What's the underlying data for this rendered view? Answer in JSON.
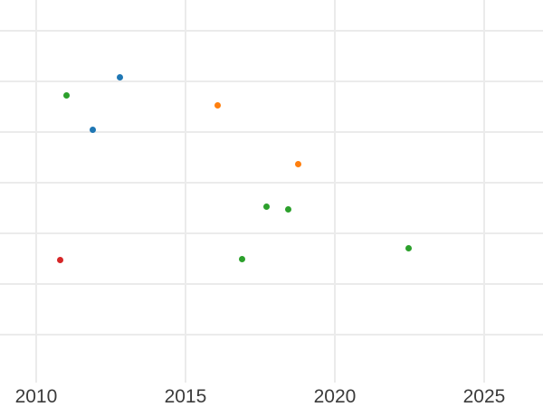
{
  "figure": {
    "background_color": "#ffffff",
    "grid_color": "#ebebeb",
    "tick_label_color": "#3b3b3b"
  },
  "chart_data": {
    "type": "scatter",
    "title": "",
    "xlabel": "",
    "ylabel": "",
    "grid": true,
    "legend": false,
    "x_ticks": [
      2010,
      2015,
      2020,
      2025
    ],
    "y_tick_labels": [],
    "y_gridline_values": [
      0,
      1,
      2,
      3,
      4,
      5,
      6
    ],
    "x_domain": [
      2008.79,
      2026.97
    ],
    "y_domain": [
      -1.43,
      6.61
    ],
    "marker_diameter_px": 7,
    "series": [
      {
        "name": "blue",
        "color": "#1f77b4",
        "points": [
          {
            "x": 2012.81,
            "y": 5.08
          },
          {
            "x": 2011.91,
            "y": 4.05
          }
        ]
      },
      {
        "name": "orange",
        "color": "#ff7f0e",
        "points": [
          {
            "x": 2016.08,
            "y": 4.52
          },
          {
            "x": 2018.76,
            "y": 3.36
          }
        ]
      },
      {
        "name": "green",
        "color": "#2ca02c",
        "points": [
          {
            "x": 2011.03,
            "y": 4.72
          },
          {
            "x": 2017.7,
            "y": 2.53
          },
          {
            "x": 2018.43,
            "y": 2.47
          },
          {
            "x": 2016.89,
            "y": 1.49
          },
          {
            "x": 2022.46,
            "y": 1.7
          }
        ]
      },
      {
        "name": "red",
        "color": "#d62728",
        "points": [
          {
            "x": 2010.79,
            "y": 1.48
          }
        ]
      }
    ]
  }
}
